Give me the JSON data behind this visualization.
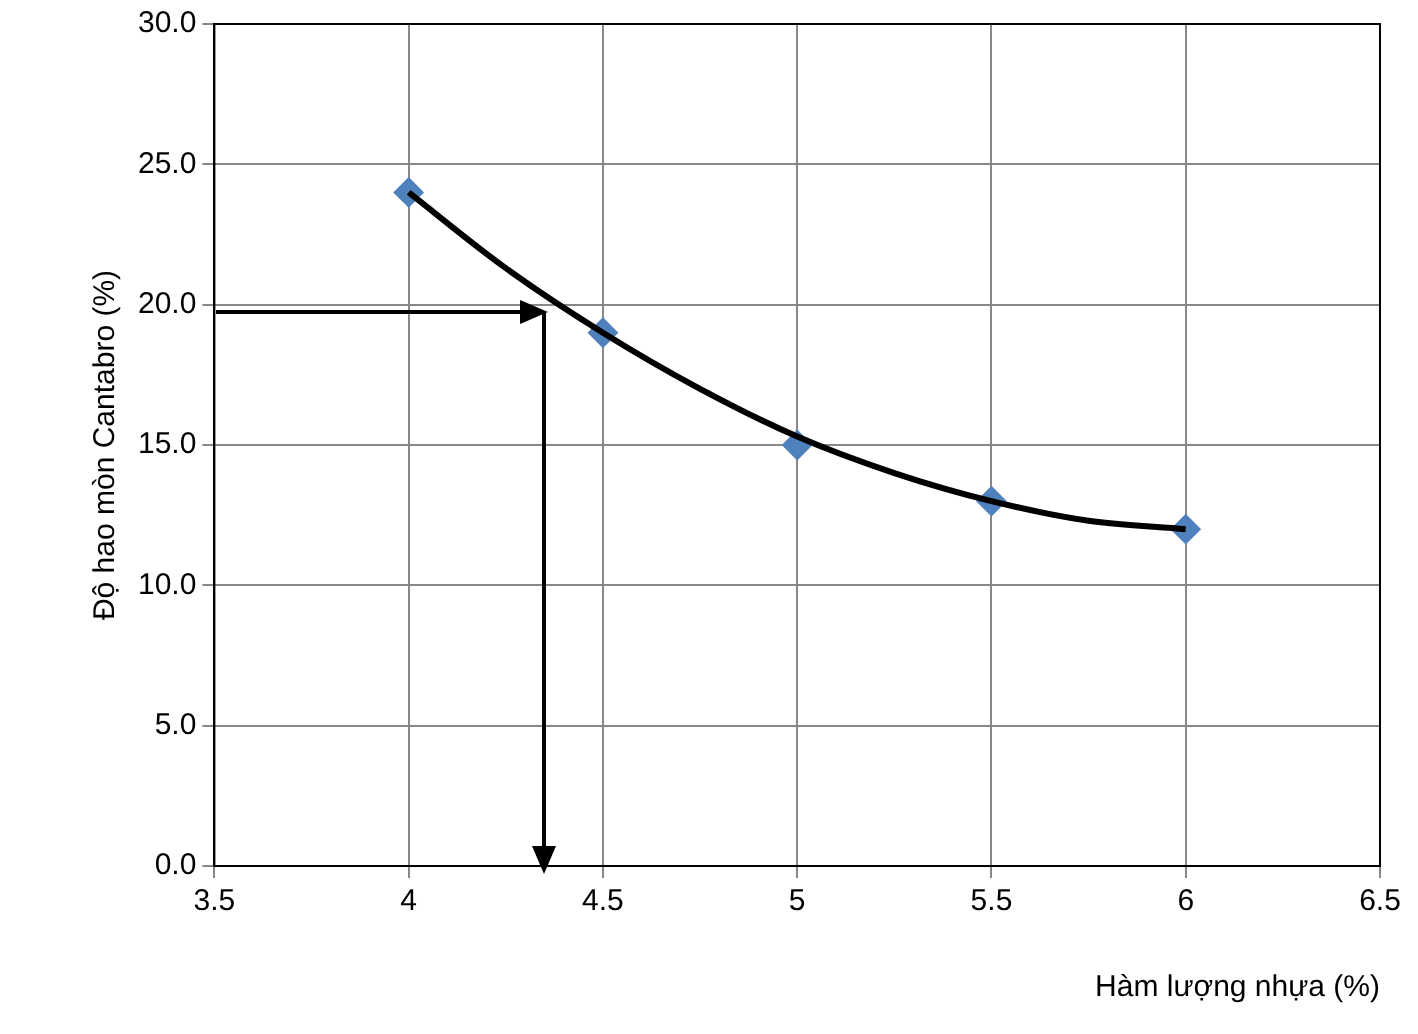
{
  "chart_data": {
    "type": "scatter",
    "xlabel": "Hàm lượng nhựa (%)",
    "ylabel": "Độ hao mòn Cantabro (%)",
    "x": [
      4,
      4.5,
      5,
      5.5,
      6
    ],
    "series": [
      {
        "color": "#4f81bd",
        "values": [
          24,
          19,
          15,
          13,
          12
        ],
        "marker": "diamond"
      },
      {
        "type": "line",
        "color": "#000000",
        "x": [
          4,
          4.25,
          4.5,
          4.75,
          5,
          5.25,
          5.5,
          5.75,
          6
        ],
        "values": [
          24,
          21.3,
          19,
          17,
          15.3,
          14,
          13,
          12.3,
          12
        ],
        "marker": "none"
      }
    ],
    "xlim": [
      3.5,
      6.5
    ],
    "xticks": [
      3.5,
      4,
      4.5,
      5,
      5.5,
      6,
      6.5
    ],
    "ylim": [
      0,
      30
    ],
    "yticks": [
      {
        "value": 0,
        "label": "0.0"
      },
      {
        "value": 5,
        "label": "5.0"
      },
      {
        "value": 10,
        "label": "10.0"
      },
      {
        "value": 15,
        "label": "15.0"
      },
      {
        "value": 20,
        "label": "20.0"
      },
      {
        "value": 25,
        "label": "25.0"
      },
      {
        "value": 30,
        "label": "30.0"
      }
    ],
    "grid": true,
    "legend": false
  }
}
